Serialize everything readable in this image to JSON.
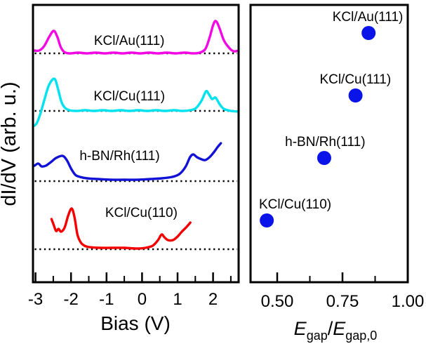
{
  "figure": {
    "background": "#ffffff",
    "axis_color": "#000000",
    "baseline_color": "#000000"
  },
  "chart_data": [
    {
      "type": "line",
      "panel": "left",
      "title": "",
      "xlabel": "Bias (V)",
      "ylabel": "dI/dV (arb. u.)",
      "xlim": [
        -3.05,
        2.73
      ],
      "xticks_major": [
        -3,
        -2,
        -1,
        0,
        1,
        2
      ],
      "xtick_labels": [
        "-3",
        "-2",
        "-1",
        "0",
        "1",
        "2"
      ],
      "xticks_minor": [
        -2.5,
        -1.5,
        -0.5,
        0.5,
        1.5,
        2.5
      ],
      "grid": false,
      "y_units": "arbitrary units (stacked spectra, heights in px above each dotted zero baseline)",
      "baseline_style": "dotted",
      "series": [
        {
          "name": "KCl/Au(111)",
          "color": "#f307e3",
          "baseline_y": 76,
          "label_x": -0.36,
          "label_h": 12,
          "points": [
            [
              -3.03,
              4
            ],
            [
              -2.9,
              4
            ],
            [
              -2.76,
              10
            ],
            [
              -2.62,
              23
            ],
            [
              -2.49,
              32
            ],
            [
              -2.39,
              24
            ],
            [
              -2.29,
              9
            ],
            [
              -2.19,
              2
            ],
            [
              -2.05,
              0
            ],
            [
              -1.8,
              1
            ],
            [
              -1.55,
              0
            ],
            [
              -1.3,
              1
            ],
            [
              -1.05,
              0
            ],
            [
              -0.8,
              1
            ],
            [
              -0.55,
              0
            ],
            [
              -0.3,
              1
            ],
            [
              -0.05,
              0
            ],
            [
              0.2,
              1
            ],
            [
              0.45,
              0
            ],
            [
              0.7,
              1
            ],
            [
              0.95,
              0
            ],
            [
              1.2,
              1
            ],
            [
              1.45,
              0
            ],
            [
              1.62,
              1
            ],
            [
              1.78,
              6
            ],
            [
              1.9,
              22
            ],
            [
              2.0,
              40
            ],
            [
              2.08,
              46
            ],
            [
              2.18,
              36
            ],
            [
              2.3,
              19
            ],
            [
              2.45,
              8
            ],
            [
              2.58,
              3
            ],
            [
              2.72,
              4
            ]
          ]
        },
        {
          "name": "KCl/Cu(111)",
          "color": "#00e2ee",
          "baseline_y": 158,
          "label_x": -0.36,
          "label_h": 15,
          "points": [
            [
              -3.03,
              -21
            ],
            [
              -2.96,
              -17
            ],
            [
              -2.87,
              -5
            ],
            [
              -2.76,
              14
            ],
            [
              -2.65,
              33
            ],
            [
              -2.55,
              43
            ],
            [
              -2.45,
              45
            ],
            [
              -2.36,
              30
            ],
            [
              -2.27,
              13
            ],
            [
              -2.18,
              5
            ],
            [
              -2.05,
              1
            ],
            [
              -1.85,
              0
            ],
            [
              -1.6,
              1
            ],
            [
              -1.35,
              0
            ],
            [
              -1.1,
              1
            ],
            [
              -0.85,
              0
            ],
            [
              -0.6,
              1
            ],
            [
              -0.35,
              0
            ],
            [
              -0.1,
              1
            ],
            [
              0.15,
              0
            ],
            [
              0.4,
              1
            ],
            [
              0.65,
              0
            ],
            [
              0.9,
              1
            ],
            [
              1.15,
              0
            ],
            [
              1.35,
              1
            ],
            [
              1.52,
              4
            ],
            [
              1.68,
              15
            ],
            [
              1.8,
              28
            ],
            [
              1.88,
              24
            ],
            [
              1.97,
              17
            ],
            [
              2.07,
              19
            ],
            [
              2.18,
              10
            ],
            [
              2.3,
              3
            ],
            [
              2.5,
              0
            ],
            [
              2.72,
              -1
            ]
          ]
        },
        {
          "name": "h-BN/Rh(111)",
          "color": "#1212d6",
          "baseline_y": 258,
          "label_x": -0.63,
          "label_h": 30,
          "points": [
            [
              -3.03,
              22
            ],
            [
              -2.92,
              25
            ],
            [
              -2.83,
              21
            ],
            [
              -2.71,
              22
            ],
            [
              -2.57,
              27
            ],
            [
              -2.42,
              33
            ],
            [
              -2.24,
              36
            ],
            [
              -2.12,
              30
            ],
            [
              -2.0,
              18
            ],
            [
              -1.88,
              9
            ],
            [
              -1.75,
              6
            ],
            [
              -1.55,
              4
            ],
            [
              -1.25,
              3
            ],
            [
              -0.9,
              2
            ],
            [
              -0.5,
              2
            ],
            [
              -0.1,
              2
            ],
            [
              0.25,
              3
            ],
            [
              0.55,
              4
            ],
            [
              0.85,
              6
            ],
            [
              1.05,
              10
            ],
            [
              1.22,
              20
            ],
            [
              1.35,
              34
            ],
            [
              1.44,
              38
            ],
            [
              1.55,
              34
            ],
            [
              1.68,
              31
            ],
            [
              1.78,
              30
            ],
            [
              1.9,
              34
            ],
            [
              2.02,
              41
            ],
            [
              2.12,
              48
            ],
            [
              2.22,
              54
            ]
          ]
        },
        {
          "name": "KCl/Cu(110)",
          "color": "#f40000",
          "baseline_y": 355,
          "label_x": -0.02,
          "label_h": 46,
          "points": [
            [
              -2.55,
              43
            ],
            [
              -2.49,
              35
            ],
            [
              -2.42,
              26
            ],
            [
              -2.35,
              29
            ],
            [
              -2.28,
              25
            ],
            [
              -2.18,
              31
            ],
            [
              -2.08,
              48
            ],
            [
              -1.98,
              58
            ],
            [
              -1.9,
              45
            ],
            [
              -1.82,
              21
            ],
            [
              -1.73,
              10
            ],
            [
              -1.62,
              5
            ],
            [
              -1.48,
              3
            ],
            [
              -1.2,
              2
            ],
            [
              -0.85,
              2
            ],
            [
              -0.5,
              2
            ],
            [
              -0.15,
              1
            ],
            [
              0.1,
              2
            ],
            [
              0.3,
              5
            ],
            [
              0.45,
              13
            ],
            [
              0.55,
              21
            ],
            [
              0.63,
              17
            ],
            [
              0.73,
              13
            ],
            [
              0.87,
              13
            ],
            [
              1.0,
              18
            ],
            [
              1.12,
              25
            ],
            [
              1.24,
              31
            ],
            [
              1.36,
              38
            ]
          ]
        }
      ]
    },
    {
      "type": "scatter",
      "panel": "right",
      "title": "",
      "xlabel_parts": {
        "e1": "E",
        "sub1": "gap",
        "slash": "/",
        "e2": "E",
        "sub2": "gap,0"
      },
      "xlim": [
        0.398,
        1.0
      ],
      "xticks_major": [
        0.5,
        0.75,
        1.0
      ],
      "xtick_labels": [
        "0.50",
        "0.75",
        "1.00"
      ],
      "xticks_minor": [
        0.625,
        0.875
      ],
      "ylim": [
        0,
        4.45
      ],
      "grid": false,
      "marker": "circle",
      "marker_color": "#0a14e8",
      "marker_radius": 10,
      "points": [
        {
          "label": "KCl/Au(111)",
          "x": 0.85,
          "y": 4
        },
        {
          "label": "KCl/Cu(111)",
          "x": 0.8,
          "y": 3
        },
        {
          "label": "h-BN/Rh(111)",
          "x": 0.68,
          "y": 2
        },
        {
          "label": "KCl/Cu(110)",
          "x": 0.46,
          "y": 1
        }
      ]
    }
  ]
}
